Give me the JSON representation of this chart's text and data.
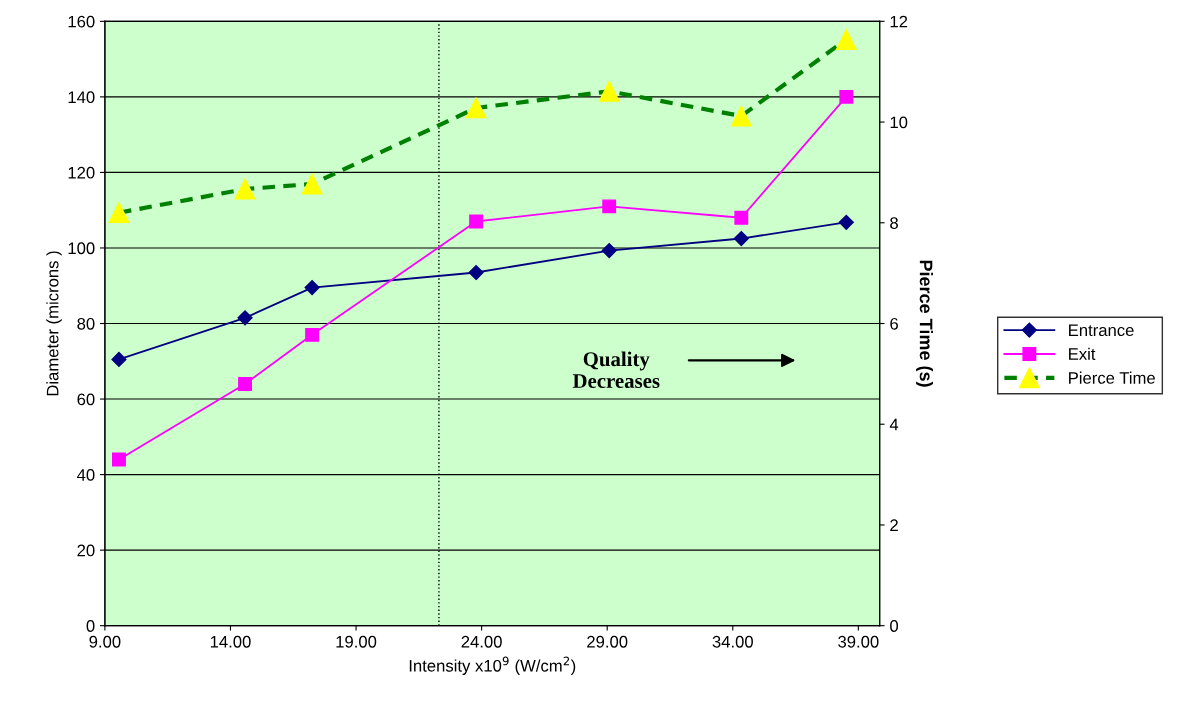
{
  "chart_data": {
    "type": "line",
    "xlabel": "Intensity x10$^{9}$ (W/cm$^{2}$)",
    "ylabel": "Diameter (microns )",
    "y2label": "Pierce Time (s)",
    "x": [
      9.56,
      14.58,
      17.25,
      23.78,
      29.08,
      34.34,
      38.52
    ],
    "series": [
      {
        "name": "Entrance",
        "color": "#000080",
        "marker": "diamond",
        "line_style": "solid",
        "values": [
          70.5,
          81.5,
          89.5,
          93.5,
          99.3,
          102.5,
          106.8
        ]
      },
      {
        "name": "Exit",
        "color": "#ff00ff",
        "marker": "square",
        "line_style": "solid",
        "values": [
          44,
          64,
          77,
          107,
          111,
          108,
          140
        ]
      },
      {
        "name": "Pierce Time",
        "color": "#008000",
        "colors": [
          "#ffff00",
          "#ffff00",
          "#ffff00",
          "#ffff00",
          "#ffff00",
          "#ffff00",
          "#ffff00"
        ],
        "marker": "triangle",
        "line_style": "dashed",
        "axis": "y2",
        "values": [
          8.2,
          8.67,
          8.77,
          10.28,
          10.61,
          10.12,
          11.64
        ]
      }
    ],
    "xlim": [
      9,
      39.85
    ],
    "xticks": [
      {
        "value": 9,
        "label": "9.00"
      },
      {
        "value": 14,
        "label": "14.00"
      },
      {
        "value": 19,
        "label": "19.00"
      },
      {
        "value": 24,
        "label": "24.00"
      },
      {
        "value": 29,
        "label": "29.00"
      },
      {
        "value": 34,
        "label": "34.00"
      },
      {
        "value": 39,
        "label": "39.00"
      }
    ],
    "ylim": [
      0,
      160
    ],
    "yticks": [
      0,
      20,
      40,
      60,
      80,
      100,
      120,
      140,
      160
    ],
    "y2lim": [
      0,
      12
    ],
    "y2ticks": [
      0,
      2,
      4,
      6,
      8,
      10,
      12
    ],
    "ref_lines": [
      {
        "axis": "x",
        "value": 22.3,
        "color": "#000000",
        "line_style": "dotted"
      }
    ],
    "annotations": [
      "Quality\nDecreases"
    ],
    "grid": "y",
    "legend": "right"
  }
}
